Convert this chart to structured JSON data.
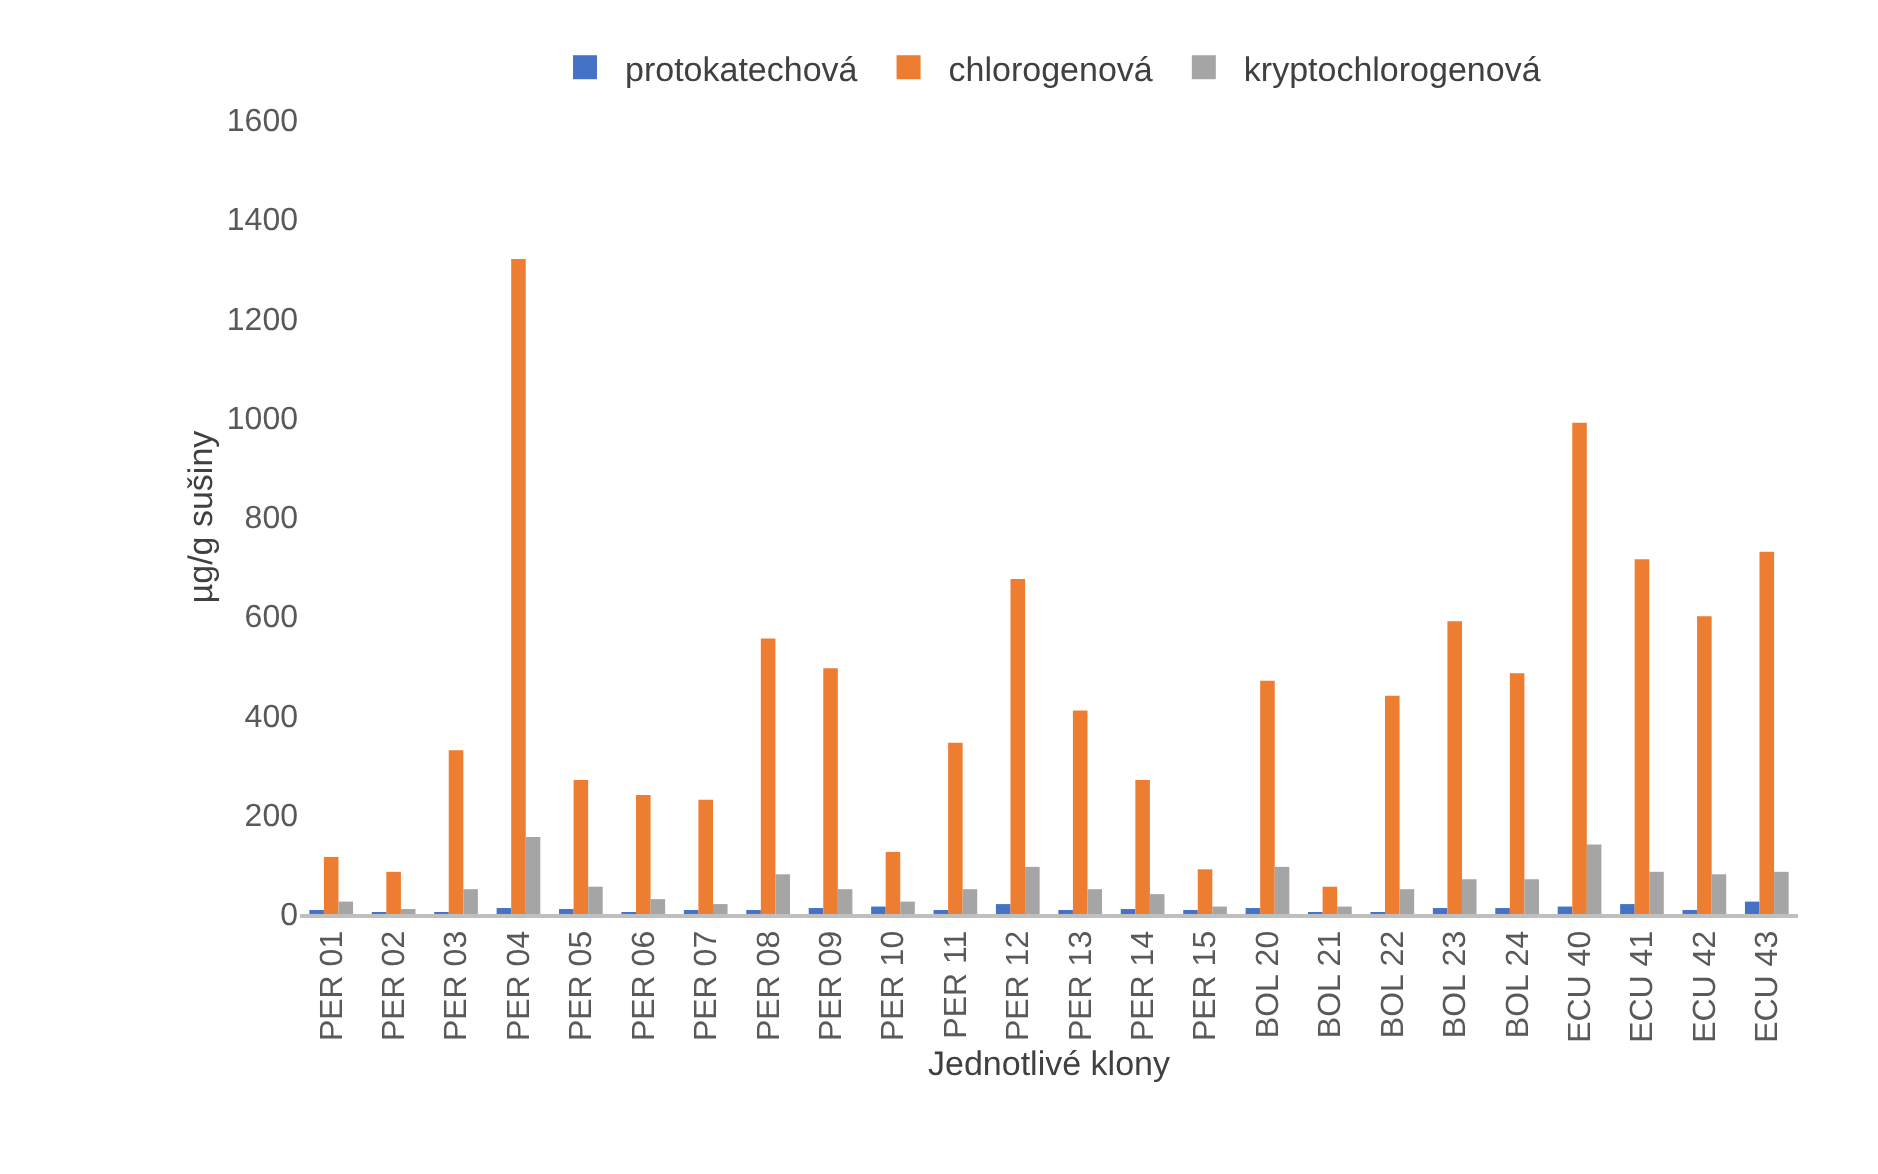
{
  "chart_data": {
    "type": "bar",
    "xlabel": "Jednotlivé klony",
    "ylabel": "µg/g sušiny",
    "categories": [
      "PER 01",
      "PER 02",
      "PER 03",
      "PER 04",
      "PER 05",
      "PER 06",
      "PER 07",
      "PER 08",
      "PER 09",
      "PER 10",
      "PER 11",
      "PER 12",
      "PER 13",
      "PER 14",
      "PER 15",
      "BOL 20",
      "BOL 21",
      "BOL 22",
      "BOL 23",
      "BOL 24",
      "ECU 40",
      "ECU 41",
      "ECU 42",
      "ECU 43"
    ],
    "series": [
      {
        "name": "protokatechová",
        "color": "#4472c4",
        "values": [
          5,
          2,
          2,
          12,
          10,
          2,
          5,
          8,
          12,
          15,
          5,
          20,
          5,
          10,
          5,
          12,
          2,
          3,
          12,
          12,
          15,
          20,
          8,
          25
        ]
      },
      {
        "name": "chlorogenová",
        "color": "#ed7d31",
        "values": [
          115,
          85,
          330,
          1320,
          270,
          240,
          230,
          555,
          495,
          125,
          345,
          675,
          410,
          270,
          90,
          470,
          55,
          440,
          590,
          485,
          990,
          715,
          600,
          730
        ]
      },
      {
        "name": "kryptochlorogenová",
        "color": "#a5a5a5",
        "values": [
          25,
          10,
          50,
          155,
          55,
          30,
          20,
          80,
          50,
          25,
          50,
          95,
          50,
          40,
          15,
          95,
          15,
          50,
          70,
          70,
          140,
          85,
          80,
          85
        ]
      }
    ],
    "ylim": [
      0,
      1600
    ],
    "yticks": [
      0,
      200,
      400,
      600,
      800,
      1000,
      1200,
      1400,
      1600
    ],
    "grid": false,
    "legend": "top"
  }
}
